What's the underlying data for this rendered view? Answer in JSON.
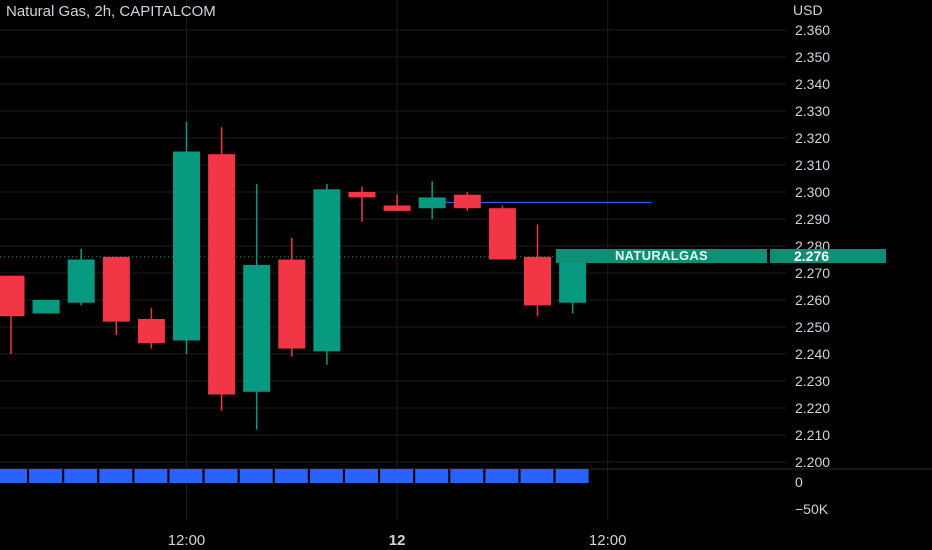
{
  "header": {
    "title": "Natural Gas, 2h, CAPITALCOM",
    "currency": "USD"
  },
  "price_tag": {
    "symbol": "NATURALGAS",
    "value": "2.276"
  },
  "volume_axis": {
    "labels": [
      "0",
      "−50K"
    ]
  },
  "colors": {
    "background": "#000000",
    "bullish": "#089981",
    "bearish": "#f23645",
    "volume": "#2962ff",
    "hline": "#2962ff",
    "tag": "#0c8f74"
  },
  "chart_data": {
    "type": "candlestick",
    "symbol": "Natural Gas",
    "interval": "2h",
    "source": "CAPITALCOM",
    "ylim": [
      2.2,
      2.36
    ],
    "y_ticks": [
      "2.360",
      "2.350",
      "2.340",
      "2.330",
      "2.320",
      "2.310",
      "2.300",
      "2.290",
      "2.280",
      "2.270",
      "2.260",
      "2.250",
      "2.240",
      "2.230",
      "2.220",
      "2.210",
      "2.200"
    ],
    "x_tick_labels": [
      {
        "index": 5,
        "label": "12:00"
      },
      {
        "index": 11,
        "label": "12"
      },
      {
        "index": 17,
        "label": "12:00"
      }
    ],
    "candles": [
      {
        "o": 2.269,
        "h": 2.269,
        "l": 2.24,
        "c": 2.254
      },
      {
        "o": 2.255,
        "h": 2.26,
        "l": 2.255,
        "c": 2.26
      },
      {
        "o": 2.259,
        "h": 2.279,
        "l": 2.258,
        "c": 2.275
      },
      {
        "o": 2.276,
        "h": 2.276,
        "l": 2.247,
        "c": 2.252
      },
      {
        "o": 2.253,
        "h": 2.257,
        "l": 2.242,
        "c": 2.244
      },
      {
        "o": 2.245,
        "h": 2.326,
        "l": 2.24,
        "c": 2.315
      },
      {
        "o": 2.314,
        "h": 2.324,
        "l": 2.219,
        "c": 2.225
      },
      {
        "o": 2.226,
        "h": 2.303,
        "l": 2.212,
        "c": 2.273
      },
      {
        "o": 2.275,
        "h": 2.283,
        "l": 2.239,
        "c": 2.242
      },
      {
        "o": 2.241,
        "h": 2.303,
        "l": 2.236,
        "c": 2.301
      },
      {
        "o": 2.3,
        "h": 2.302,
        "l": 2.289,
        "c": 2.298
      },
      {
        "o": 2.295,
        "h": 2.299,
        "l": 2.293,
        "c": 2.293
      },
      {
        "o": 2.294,
        "h": 2.304,
        "l": 2.29,
        "c": 2.298
      },
      {
        "o": 2.299,
        "h": 2.3,
        "l": 2.293,
        "c": 2.294
      },
      {
        "o": 2.294,
        "h": 2.295,
        "l": 2.275,
        "c": 2.275
      },
      {
        "o": 2.276,
        "h": 2.288,
        "l": 2.254,
        "c": 2.258
      },
      {
        "o": 2.259,
        "h": 2.276,
        "l": 2.255,
        "c": 2.276
      }
    ],
    "horizontal_line": {
      "value": 2.2961,
      "from_index": 12,
      "to_index": 18
    },
    "last_price": 2.276,
    "volume": [
      1,
      1,
      1,
      1,
      1,
      1,
      1,
      1,
      1,
      1,
      1,
      1,
      1,
      1,
      1,
      1,
      1
    ]
  }
}
